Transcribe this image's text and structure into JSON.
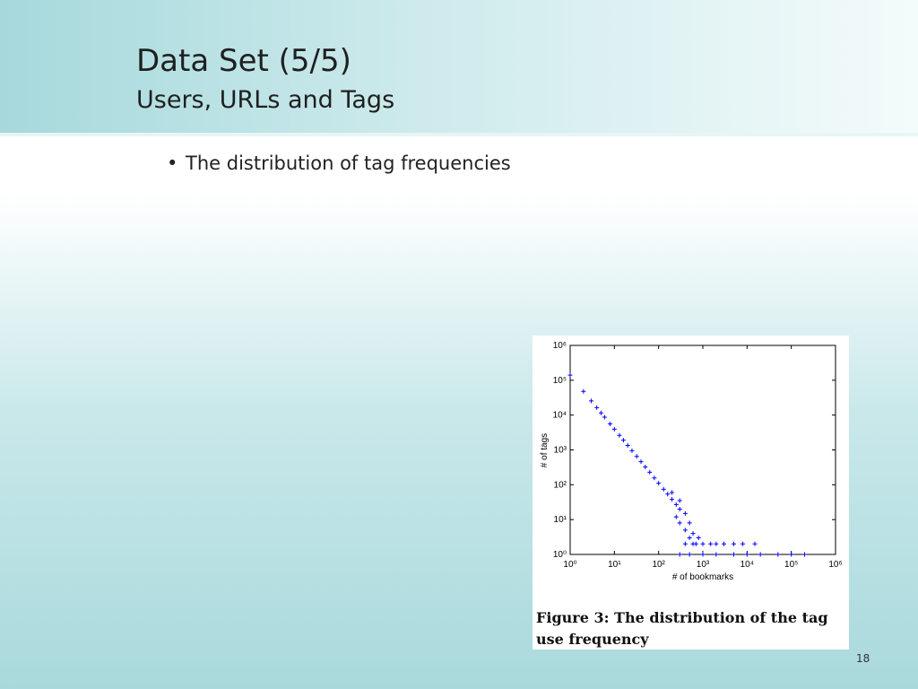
{
  "slide": {
    "title": "Data Set (5/5)",
    "subtitle": "Users, URLs and Tags",
    "bullet": "The distribution of tag frequencies",
    "page_number": "18",
    "caption": "Figure 3: The distribution of the tag use frequency"
  },
  "chart_data": {
    "type": "scatter",
    "xlabel": "# of bookmarks",
    "ylabel": "# of tags",
    "log_x": true,
    "log_y": true,
    "marker": "+",
    "xlim": [
      1,
      1000000
    ],
    "ylim": [
      1,
      1000000
    ],
    "xticks": [
      {
        "value": 1,
        "label": "10⁰"
      },
      {
        "value": 10,
        "label": "10¹"
      },
      {
        "value": 100,
        "label": "10²"
      },
      {
        "value": 1000,
        "label": "10³"
      },
      {
        "value": 10000,
        "label": "10⁴"
      },
      {
        "value": 100000,
        "label": "10⁵"
      },
      {
        "value": 1000000,
        "label": "10⁶"
      }
    ],
    "yticks": [
      {
        "value": 1,
        "label": "10⁰"
      },
      {
        "value": 10,
        "label": "10¹"
      },
      {
        "value": 100,
        "label": "10²"
      },
      {
        "value": 1000,
        "label": "10³"
      },
      {
        "value": 10000,
        "label": "10⁴"
      },
      {
        "value": 100000,
        "label": "10⁵"
      },
      {
        "value": 1000000,
        "label": "10⁶"
      }
    ],
    "series": [
      {
        "color": "#0000ff",
        "x": [
          1,
          2,
          3,
          4,
          5,
          6,
          8,
          10,
          13,
          16,
          20,
          25,
          32,
          40,
          50,
          63,
          80,
          100,
          130,
          160,
          200,
          250,
          300,
          200,
          250,
          300,
          300,
          400,
          400,
          500,
          500,
          600,
          700,
          800,
          1000,
          1500,
          2000,
          3000,
          5000,
          8000,
          15000,
          300,
          500,
          1000,
          2000,
          5000,
          10000,
          20000,
          50000,
          100000,
          200000,
          400,
          600
        ],
        "values": [
          140000,
          48000,
          25500,
          16300,
          11500,
          8700,
          5570,
          3950,
          2630,
          1900,
          1350,
          950,
          650,
          460,
          325,
          228,
          157,
          111,
          74,
          54,
          38,
          27,
          20,
          60,
          12,
          8,
          35,
          5,
          15,
          3,
          8,
          4,
          2,
          3,
          2,
          2,
          2,
          2,
          2,
          2,
          2,
          1,
          1,
          1,
          1,
          1,
          1,
          1,
          1,
          1,
          1,
          2,
          2
        ]
      }
    ]
  }
}
